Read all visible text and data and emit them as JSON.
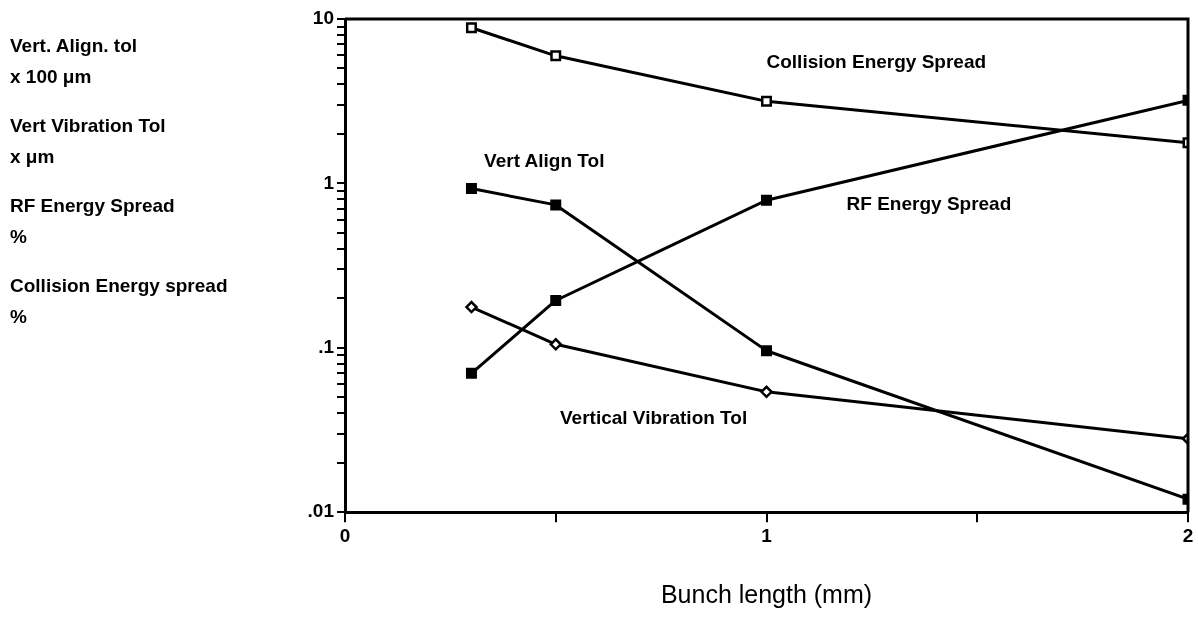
{
  "chart_data": {
    "type": "line",
    "xlabel": "Bunch length (mm)",
    "annotations": [
      "Vert. Align. tol\nx 100 μm",
      "Vert Vibration Tol\nx μm",
      "RF Energy Spread\n%",
      "Collision Energy spread\n%"
    ],
    "x": [
      0.3,
      0.5,
      1,
      2
    ],
    "series": [
      {
        "name": "Collision Energy Spread",
        "color": "#000000",
        "marker": "square",
        "values": [
          8.85,
          5.97,
          3.16,
          1.77
        ]
      },
      {
        "name": "Vert Align Tol",
        "color": "#000000",
        "marker": "square",
        "values": [
          0.93,
          0.74,
          0.096,
          0.012
        ]
      },
      {
        "name": "RF Energy Spread",
        "color": "#000000",
        "marker": "square",
        "values": [
          0.07,
          0.194,
          0.79,
          3.2
        ]
      },
      {
        "name": "Vertical Vibration Tol",
        "color": "#000000",
        "marker": "diamond",
        "values": [
          0.177,
          0.105,
          0.054,
          0.028
        ]
      }
    ],
    "log": "y",
    "xlim": [
      0,
      2
    ],
    "ylim": [
      0.01,
      10
    ],
    "xticks": [
      0,
      {
        "value": 0.5,
        "label": null
      },
      1,
      {
        "value": 1.5,
        "label": null
      },
      2
    ],
    "yticks": [
      {
        "value": 0.01,
        "label": ".01"
      },
      {
        "value": 0.02,
        "label": null
      },
      {
        "value": 0.03,
        "label": null
      },
      {
        "value": 0.04,
        "label": null
      },
      {
        "value": 0.05,
        "label": null
      },
      {
        "value": 0.06,
        "label": null
      },
      {
        "value": 0.07,
        "label": null
      },
      {
        "value": 0.08,
        "label": null
      },
      {
        "value": 0.09,
        "label": null
      },
      {
        "value": 0.1,
        "label": ".1"
      },
      {
        "value": 0.2,
        "label": null
      },
      {
        "value": 0.3,
        "label": null
      },
      {
        "value": 0.4,
        "label": null
      },
      {
        "value": 0.5,
        "label": null
      },
      {
        "value": 0.6,
        "label": null
      },
      {
        "value": 0.7,
        "label": null
      },
      {
        "value": 0.8,
        "label": null
      },
      {
        "value": 0.9,
        "label": null
      },
      1,
      {
        "value": 2,
        "label": null
      },
      {
        "value": 3,
        "label": null
      },
      {
        "value": 4,
        "label": null
      },
      {
        "value": 5,
        "label": null
      },
      {
        "value": 6,
        "label": null
      },
      {
        "value": 7,
        "label": null
      },
      {
        "value": 8,
        "label": null
      },
      {
        "value": 9,
        "label": null
      },
      10
    ],
    "grid": false,
    "legend": false
  }
}
